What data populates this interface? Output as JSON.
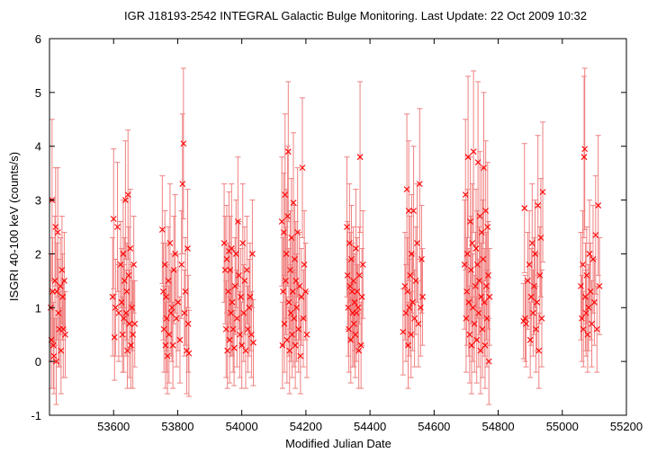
{
  "title": "IGR J18193-2542    INTEGRAL Galactic Bulge Monitoring.  Last Update: 22 Oct 2009 10:32",
  "chart_data": {
    "type": "scatter",
    "title": "IGR J18193-2542    INTEGRAL Galactic Bulge Monitoring.  Last Update: 22 Oct 2009 10:32",
    "xlabel": "Modified Julian Date",
    "ylabel": "ISGRI 40-100 keV (counts/s)",
    "xlim": [
      53400,
      55200
    ],
    "ylim": [
      -1,
      6
    ],
    "xticks": [
      53600,
      53800,
      54000,
      54200,
      54400,
      54600,
      54800,
      55000,
      55200
    ],
    "yticks": [
      -1,
      0,
      1,
      2,
      3,
      4,
      5,
      6
    ],
    "grid": false,
    "marker": "x",
    "color": "#ff0000",
    "errorbar_color": "#f08080",
    "points": [
      [
        53404,
        1.0,
        1.0
      ],
      [
        53406,
        0.4,
        0.9
      ],
      [
        53408,
        3.0,
        1.5
      ],
      [
        53410,
        1.3,
        1.0
      ],
      [
        53412,
        0.3,
        0.8
      ],
      [
        53414,
        0.1,
        0.7
      ],
      [
        53417,
        1.5,
        1.2
      ],
      [
        53419,
        2.5,
        1.1
      ],
      [
        53421,
        0.0,
        0.8
      ],
      [
        53423,
        1.3,
        0.9
      ],
      [
        53426,
        2.4,
        1.2
      ],
      [
        53428,
        0.9,
        1.0
      ],
      [
        53431,
        0.6,
        0.7
      ],
      [
        53434,
        1.4,
        0.9
      ],
      [
        53436,
        0.2,
        0.8
      ],
      [
        53439,
        1.7,
        1.0
      ],
      [
        53441,
        1.2,
        0.8
      ],
      [
        53443,
        0.6,
        0.9
      ],
      [
        53446,
        1.5,
        0.9
      ],
      [
        53449,
        0.5,
        0.8
      ],
      [
        53597,
        1.2,
        1.1
      ],
      [
        53600,
        2.65,
        1.3
      ],
      [
        53603,
        0.45,
        0.8
      ],
      [
        53606,
        1.0,
        0.9
      ],
      [
        53612,
        2.5,
        1.2
      ],
      [
        53616,
        0.9,
        0.9
      ],
      [
        53622,
        1.8,
        0.8
      ],
      [
        53625,
        1.1,
        1.0
      ],
      [
        53628,
        0.5,
        0.7
      ],
      [
        53630,
        2.0,
        1.0
      ],
      [
        53632,
        0.8,
        1.0
      ],
      [
        53634,
        1.5,
        0.8
      ],
      [
        53637,
        3.0,
        1.1
      ],
      [
        53639,
        0.9,
        0.8
      ],
      [
        53641,
        1.3,
        0.9
      ],
      [
        53643,
        0.2,
        0.7
      ],
      [
        53645,
        3.1,
        1.2
      ],
      [
        53647,
        1.6,
        0.9
      ],
      [
        53649,
        0.7,
        1.0
      ],
      [
        53652,
        2.1,
        1.1
      ],
      [
        53654,
        0.3,
        0.8
      ],
      [
        53657,
        1.0,
        0.8
      ],
      [
        53660,
        0.5,
        1.0
      ],
      [
        53663,
        1.8,
        0.9
      ],
      [
        53666,
        0.7,
        0.8
      ],
      [
        53752,
        2.45,
        1.0
      ],
      [
        53755,
        1.3,
        0.9
      ],
      [
        53757,
        0.6,
        0.8
      ],
      [
        53760,
        1.8,
        1.0
      ],
      [
        53762,
        0.3,
        0.8
      ],
      [
        53764,
        1.2,
        1.0
      ],
      [
        53766,
        0.8,
        1.0
      ],
      [
        53768,
        0.1,
        0.7
      ],
      [
        53771,
        1.5,
        1.0
      ],
      [
        53773,
        0.5,
        0.9
      ],
      [
        53776,
        2.2,
        1.1
      ],
      [
        53779,
        0.9,
        0.8
      ],
      [
        53782,
        1.0,
        1.0
      ],
      [
        53785,
        0.3,
        0.8
      ],
      [
        53788,
        1.7,
        1.0
      ],
      [
        53792,
        2.0,
        1.1
      ],
      [
        53796,
        0.8,
        0.9
      ],
      [
        53801,
        1.1,
        0.9
      ],
      [
        53807,
        0.4,
        0.8
      ],
      [
        53812,
        1.8,
        1.0
      ],
      [
        53815,
        3.3,
        1.3
      ],
      [
        53818,
        4.05,
        1.4
      ],
      [
        53821,
        0.9,
        0.8
      ],
      [
        53824,
        1.3,
        1.0
      ],
      [
        53828,
        0.2,
        0.8
      ],
      [
        53831,
        2.1,
        1.1
      ],
      [
        53833,
        0.7,
        0.9
      ],
      [
        53835,
        0.15,
        0.8
      ],
      [
        53945,
        2.2,
        1.1
      ],
      [
        53948,
        1.7,
        1.0
      ],
      [
        53951,
        0.6,
        0.9
      ],
      [
        53953,
        1.9,
        1.0
      ],
      [
        53955,
        0.2,
        0.7
      ],
      [
        53958,
        1.3,
        0.9
      ],
      [
        53960,
        2.05,
        1.1
      ],
      [
        53962,
        0.4,
        0.8
      ],
      [
        53964,
        1.7,
        1.0
      ],
      [
        53966,
        0.9,
        0.8
      ],
      [
        53968,
        2.1,
        1.2
      ],
      [
        53970,
        1.1,
        1.0
      ],
      [
        53973,
        0.6,
        0.8
      ],
      [
        53976,
        0.25,
        0.7
      ],
      [
        53979,
        1.4,
        0.9
      ],
      [
        53982,
        2.0,
        1.0
      ],
      [
        53985,
        0.8,
        0.9
      ],
      [
        53988,
        2.6,
        1.2
      ],
      [
        53991,
        1.6,
        1.0
      ],
      [
        53994,
        0.5,
        0.8
      ],
      [
        53997,
        1.2,
        0.9
      ],
      [
        54000,
        0.3,
        0.8
      ],
      [
        54003,
        2.2,
        1.1
      ],
      [
        54006,
        0.9,
        0.9
      ],
      [
        54009,
        1.5,
        1.0
      ],
      [
        54012,
        0.2,
        0.7
      ],
      [
        54016,
        1.7,
        1.0
      ],
      [
        54019,
        0.6,
        0.8
      ],
      [
        54023,
        1.0,
        0.9
      ],
      [
        54026,
        1.2,
        1.0
      ],
      [
        54030,
        0.5,
        0.8
      ],
      [
        54033,
        2.0,
        1.0
      ],
      [
        54036,
        0.35,
        0.8
      ],
      [
        54125,
        2.6,
        1.2
      ],
      [
        54127,
        0.3,
        0.8
      ],
      [
        54129,
        1.3,
        1.0
      ],
      [
        54131,
        2.4,
        1.1
      ],
      [
        54133,
        0.7,
        0.9
      ],
      [
        54135,
        3.1,
        1.5
      ],
      [
        54137,
        1.5,
        1.0
      ],
      [
        54139,
        2.0,
        1.2
      ],
      [
        54141,
        0.4,
        0.8
      ],
      [
        54143,
        2.7,
        1.3
      ],
      [
        54145,
        3.9,
        1.3
      ],
      [
        54147,
        1.1,
        1.0
      ],
      [
        54149,
        0.2,
        0.8
      ],
      [
        54151,
        1.7,
        1.1
      ],
      [
        54153,
        0.9,
        0.9
      ],
      [
        54155,
        2.3,
        1.1
      ],
      [
        54157,
        0.5,
        0.8
      ],
      [
        54159,
        1.3,
        1.0
      ],
      [
        54161,
        2.95,
        1.3
      ],
      [
        54163,
        0.8,
        0.9
      ],
      [
        54165,
        1.9,
        1.0
      ],
      [
        54167,
        0.3,
        0.8
      ],
      [
        54169,
        1.5,
        1.1
      ],
      [
        54171,
        1.0,
        1.0
      ],
      [
        54174,
        2.4,
        1.2
      ],
      [
        54177,
        0.6,
        0.8
      ],
      [
        54180,
        1.4,
        1.0
      ],
      [
        54183,
        0.1,
        0.7
      ],
      [
        54186,
        1.2,
        0.9
      ],
      [
        54189,
        3.6,
        1.3
      ],
      [
        54192,
        0.8,
        0.9
      ],
      [
        54195,
        1.8,
        1.0
      ],
      [
        54199,
        1.3,
        0.9
      ],
      [
        54203,
        0.5,
        0.8
      ],
      [
        54328,
        2.5,
        1.3
      ],
      [
        54330,
        1.6,
        1.0
      ],
      [
        54332,
        1.0,
        0.9
      ],
      [
        54334,
        0.6,
        0.8
      ],
      [
        54336,
        2.2,
        1.1
      ],
      [
        54338,
        1.4,
        1.0
      ],
      [
        54340,
        0.4,
        0.8
      ],
      [
        54342,
        1.9,
        1.0
      ],
      [
        54344,
        1.3,
        0.9
      ],
      [
        54346,
        0.9,
        1.0
      ],
      [
        54348,
        1.5,
        1.0
      ],
      [
        54350,
        0.7,
        0.8
      ],
      [
        54352,
        1.1,
        0.9
      ],
      [
        54354,
        0.5,
        0.8
      ],
      [
        54356,
        2.1,
        1.1
      ],
      [
        54358,
        0.9,
        0.9
      ],
      [
        54360,
        1.3,
        1.0
      ],
      [
        54363,
        1.0,
        0.8
      ],
      [
        54365,
        0.2,
        0.7
      ],
      [
        54367,
        1.6,
        0.9
      ],
      [
        54369,
        3.8,
        1.4
      ],
      [
        54372,
        0.3,
        0.8
      ],
      [
        54375,
        1.2,
        0.9
      ],
      [
        54378,
        1.8,
        1.0
      ],
      [
        54503,
        0.55,
        0.8
      ],
      [
        54509,
        1.4,
        1.0
      ],
      [
        54512,
        0.9,
        0.9
      ],
      [
        54515,
        3.2,
        1.4
      ],
      [
        54517,
        1.3,
        1.0
      ],
      [
        54519,
        0.3,
        0.8
      ],
      [
        54521,
        2.8,
        1.3
      ],
      [
        54523,
        1.0,
        0.9
      ],
      [
        54525,
        1.6,
        1.1
      ],
      [
        54528,
        0.5,
        0.8
      ],
      [
        54530,
        2.0,
        1.1
      ],
      [
        54533,
        1.1,
        0.9
      ],
      [
        54536,
        2.8,
        1.2
      ],
      [
        54539,
        0.8,
        0.9
      ],
      [
        54543,
        1.5,
        1.0
      ],
      [
        54547,
        2.2,
        1.1
      ],
      [
        54551,
        0.7,
        0.8
      ],
      [
        54555,
        3.3,
        1.4
      ],
      [
        54558,
        1.0,
        0.9
      ],
      [
        54561,
        1.9,
        1.0
      ],
      [
        54564,
        1.2,
        0.9
      ],
      [
        54695,
        1.8,
        1.2
      ],
      [
        54698,
        3.1,
        1.4
      ],
      [
        54700,
        0.8,
        1.0
      ],
      [
        54702,
        1.3,
        1.0
      ],
      [
        54704,
        2.0,
        1.2
      ],
      [
        54706,
        3.8,
        1.5
      ],
      [
        54708,
        1.1,
        1.0
      ],
      [
        54711,
        0.5,
        0.9
      ],
      [
        54713,
        2.6,
        1.2
      ],
      [
        54715,
        1.7,
        1.0
      ],
      [
        54717,
        0.3,
        0.9
      ],
      [
        54719,
        2.2,
        1.1
      ],
      [
        54721,
        1.0,
        1.0
      ],
      [
        54723,
        3.9,
        1.5
      ],
      [
        54726,
        0.7,
        0.9
      ],
      [
        54729,
        1.4,
        1.0
      ],
      [
        54731,
        2.1,
        1.1
      ],
      [
        54733,
        0.4,
        0.8
      ],
      [
        54735,
        1.8,
        1.0
      ],
      [
        54737,
        3.7,
        1.5
      ],
      [
        54739,
        0.9,
        1.0
      ],
      [
        54741,
        1.5,
        1.0
      ],
      [
        54743,
        2.7,
        1.2
      ],
      [
        54745,
        0.2,
        0.8
      ],
      [
        54747,
        1.2,
        1.0
      ],
      [
        54749,
        2.4,
        1.2
      ],
      [
        54751,
        0.6,
        0.9
      ],
      [
        54753,
        1.9,
        1.1
      ],
      [
        54755,
        3.6,
        1.4
      ],
      [
        54757,
        1.1,
        1.0
      ],
      [
        54759,
        0.3,
        0.8
      ],
      [
        54761,
        2.8,
        1.3
      ],
      [
        54763,
        1.4,
        1.0
      ],
      [
        54765,
        0.8,
        0.9
      ],
      [
        54767,
        2.5,
        1.2
      ],
      [
        54769,
        1.6,
        1.0
      ],
      [
        54771,
        0.0,
        0.8
      ],
      [
        54773,
        1.2,
        0.9
      ],
      [
        54879,
        0.75,
        0.7
      ],
      [
        54882,
        2.85,
        1.2
      ],
      [
        54884,
        0.8,
        0.8
      ],
      [
        54887,
        0.7,
        0.8
      ],
      [
        54892,
        1.5,
        0.9
      ],
      [
        54897,
        1.8,
        1.0
      ],
      [
        54900,
        0.4,
        0.7
      ],
      [
        54903,
        1.2,
        0.9
      ],
      [
        54906,
        2.2,
        1.1
      ],
      [
        54909,
        0.9,
        0.8
      ],
      [
        54912,
        1.4,
        0.9
      ],
      [
        54915,
        2.0,
        1.0
      ],
      [
        54918,
        0.6,
        0.8
      ],
      [
        54921,
        1.1,
        0.9
      ],
      [
        54924,
        2.9,
        1.3
      ],
      [
        54927,
        0.2,
        0.7
      ],
      [
        54930,
        1.6,
        0.9
      ],
      [
        54933,
        2.3,
        1.1
      ],
      [
        54936,
        0.8,
        0.9
      ],
      [
        54939,
        3.15,
        1.3
      ],
      [
        55058,
        1.4,
        1.0
      ],
      [
        55061,
        0.8,
        0.8
      ],
      [
        55064,
        1.8,
        1.0
      ],
      [
        55066,
        0.6,
        0.7
      ],
      [
        55068,
        3.8,
        1.5
      ],
      [
        55070,
        3.95,
        1.5
      ],
      [
        55072,
        1.2,
        1.0
      ],
      [
        55074,
        0.9,
        0.8
      ],
      [
        55076,
        1.6,
        0.9
      ],
      [
        55079,
        0.5,
        0.7
      ],
      [
        55082,
        1.0,
        0.8
      ],
      [
        55085,
        2.0,
        1.0
      ],
      [
        55088,
        1.3,
        0.9
      ],
      [
        55092,
        0.7,
        0.8
      ],
      [
        55096,
        1.9,
        1.0
      ],
      [
        55100,
        1.1,
        0.8
      ],
      [
        55104,
        2.35,
        1.1
      ],
      [
        55108,
        0.6,
        0.8
      ],
      [
        55112,
        2.9,
        1.3
      ],
      [
        55116,
        1.4,
        0.9
      ]
    ]
  }
}
